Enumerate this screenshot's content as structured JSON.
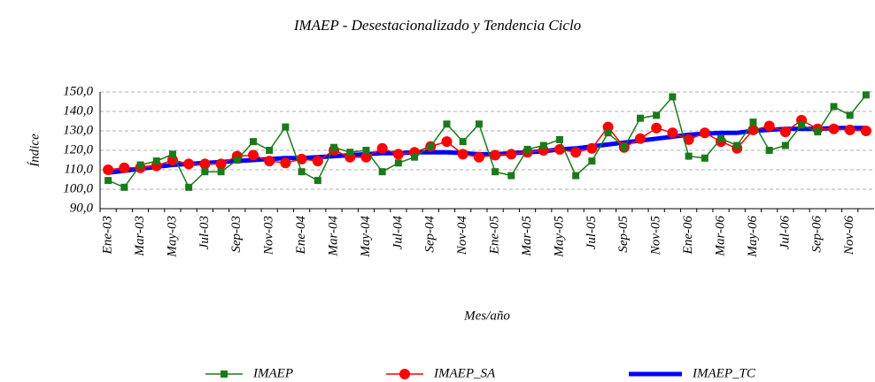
{
  "chart_data": {
    "type": "line",
    "title": "IMAEP - Desestacionalizado y Tendencia Ciclo",
    "x_label": "Mes/año",
    "y_label": "Índice",
    "categories": [
      "Ene-03",
      null,
      "Mar-03",
      null,
      "May-03",
      null,
      "Jul-03",
      null,
      "Sep-03",
      null,
      "Nov-03",
      null,
      "Ene-04",
      null,
      "Mar-04",
      null,
      "May-04",
      null,
      "Jul-04",
      null,
      "Sep-04",
      null,
      "Nov-04",
      null,
      "Ene-05",
      null,
      "Mar-05",
      null,
      "May-05",
      null,
      "Jul-05",
      null,
      "Sep-05",
      null,
      "Nov-05",
      null,
      "Ene-06",
      null,
      "Mar-06",
      null,
      "May-06",
      null,
      "Jul-06",
      null,
      "Sep-06",
      null,
      "Nov-06",
      null
    ],
    "series": [
      {
        "name": "IMAEP",
        "color": "#1a7a1a",
        "marker": "square",
        "values": [
          104.5,
          101,
          112.5,
          114.5,
          118,
          101,
          109,
          109,
          115,
          124.5,
          120,
          132,
          109,
          104.5,
          121.5,
          119,
          120,
          109,
          113.5,
          116.5,
          122,
          133.5,
          124.5,
          133.5,
          109,
          107,
          120.5,
          122.5,
          125.5,
          107,
          114.5,
          129,
          121.5,
          136.5,
          138,
          147.5,
          117,
          116,
          126,
          122.5,
          134.5,
          120,
          122.5,
          133,
          129.5,
          142.5,
          138,
          148.5
        ]
      },
      {
        "name": "IMAEP_SA",
        "color": "#ff0000",
        "marker": "circle",
        "values": [
          110,
          111,
          111,
          112,
          115,
          113,
          113,
          113,
          117,
          117.5,
          114.5,
          113.5,
          115.5,
          114.5,
          120,
          116.5,
          116.5,
          121,
          118,
          119,
          122,
          124.5,
          118,
          116.5,
          117.5,
          118,
          119,
          120,
          120.5,
          119,
          121,
          132,
          121.5,
          126,
          131.5,
          129,
          125.5,
          129,
          124.5,
          121,
          130.5,
          132.5,
          129.5,
          135.5,
          131,
          131,
          130.5,
          130
        ]
      },
      {
        "name": "IMAEP_TC",
        "color": "#0000ff",
        "marker": "none",
        "values": [
          108.5,
          109.5,
          110.5,
          111.5,
          112.5,
          113,
          113.5,
          114,
          114.5,
          115,
          115.5,
          116,
          116,
          116.5,
          117,
          117.5,
          118,
          118.5,
          118.5,
          119,
          119,
          119,
          118.5,
          118,
          118,
          118.5,
          119,
          119.5,
          120.5,
          121,
          122,
          123,
          124,
          125,
          126,
          127,
          128,
          128.5,
          129,
          129,
          130,
          130.5,
          131,
          131,
          131,
          131.5,
          131.5,
          131.5
        ]
      }
    ],
    "ylim": [
      90,
      150
    ],
    "yticks": [
      {
        "value": 90,
        "label": "90,0"
      },
      {
        "value": 100,
        "label": "100,0"
      },
      {
        "value": 110,
        "label": "110,0"
      },
      {
        "value": 120,
        "label": "120,0"
      },
      {
        "value": 130,
        "label": "130,0"
      },
      {
        "value": 140,
        "label": "140,0"
      },
      {
        "value": 150,
        "label": "150,0"
      }
    ],
    "grid": true,
    "legend": "bottom"
  }
}
